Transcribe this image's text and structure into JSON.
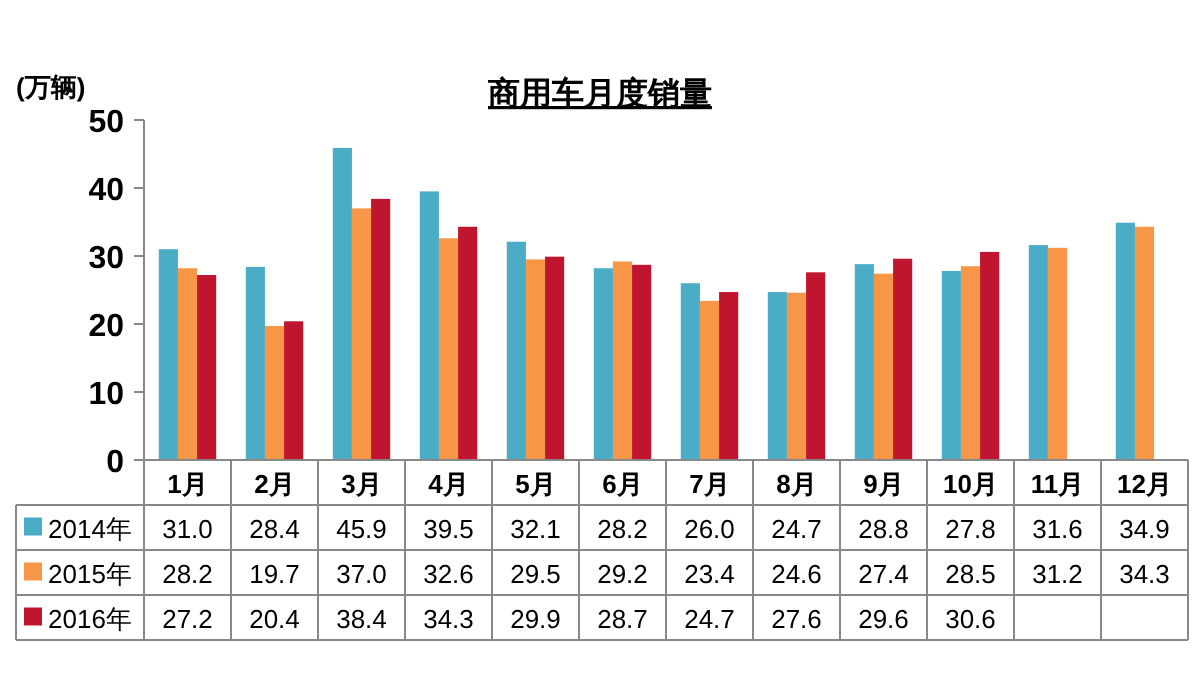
{
  "chart_data": {
    "type": "bar",
    "title": "商用车月度销量",
    "ylabel": "(万辆)",
    "categories": [
      "1月",
      "2月",
      "3月",
      "4月",
      "5月",
      "6月",
      "7月",
      "8月",
      "9月",
      "10月",
      "11月",
      "12月"
    ],
    "series": [
      {
        "name": "2014年",
        "color": "#4bacc6",
        "values": [
          31.0,
          28.4,
          45.9,
          39.5,
          32.1,
          28.2,
          26.0,
          24.7,
          28.8,
          27.8,
          31.6,
          34.9
        ],
        "value_labels": [
          "31.0",
          "28.4",
          "45.9",
          "39.5",
          "32.1",
          "28.2",
          "26.0",
          "24.7",
          "28.8",
          "27.8",
          "31.6",
          "34.9"
        ]
      },
      {
        "name": "2015年",
        "color": "#f79646",
        "values": [
          28.2,
          19.7,
          37.0,
          32.6,
          29.5,
          29.2,
          23.4,
          24.6,
          27.4,
          28.5,
          31.2,
          34.3
        ],
        "value_labels": [
          "28.2",
          "19.7",
          "37.0",
          "32.6",
          "29.5",
          "29.2",
          "23.4",
          "24.6",
          "27.4",
          "28.5",
          "31.2",
          "34.3"
        ]
      },
      {
        "name": "2016年",
        "color": "#c0152f",
        "values": [
          27.2,
          20.4,
          38.4,
          34.3,
          29.9,
          28.7,
          24.7,
          27.6,
          29.6,
          30.6,
          null,
          null
        ],
        "value_labels": [
          "27.2",
          "20.4",
          "38.4",
          "34.3",
          "29.9",
          "28.7",
          "24.7",
          "27.6",
          "29.6",
          "30.6",
          null,
          null
        ]
      }
    ],
    "ylim": [
      0,
      50
    ],
    "yticks": [
      0,
      10,
      20,
      30,
      40,
      50
    ],
    "grid": false,
    "legend": "bottom left",
    "data_labels": true
  }
}
